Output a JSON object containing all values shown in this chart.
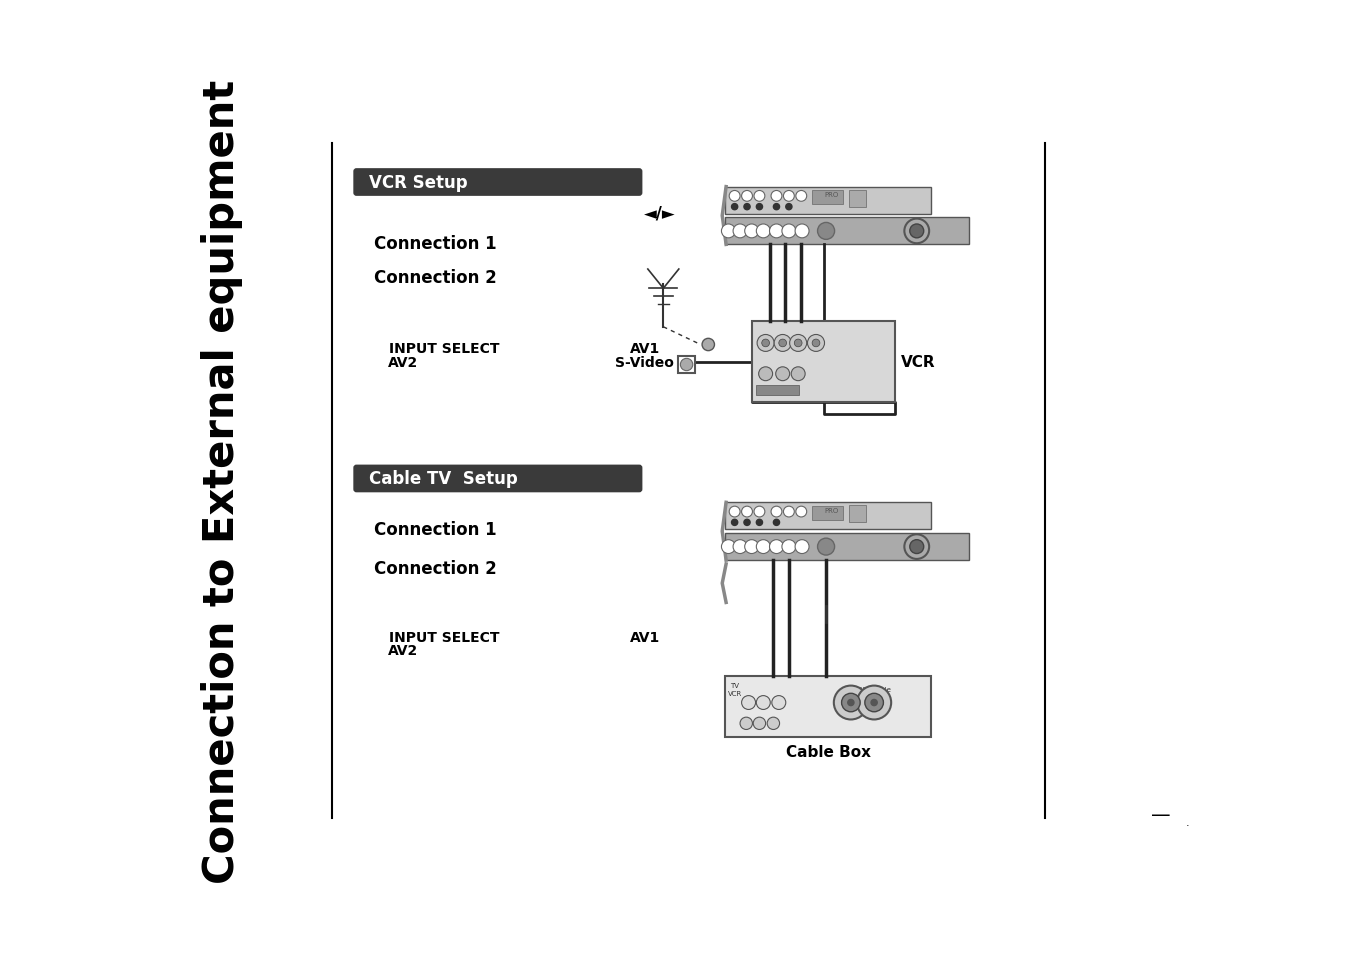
{
  "bg_color": "#ffffff",
  "sidebar_title": "Connection to External equipment",
  "vcr_header": "VCR Setup",
  "cable_header": "Cable TV  Setup",
  "vcr_conn1": "Connection 1",
  "vcr_conn2": "Connection 2",
  "cable_conn1": "Connection 1",
  "cable_conn2": "Connection 2",
  "vcr_input_select": "INPUT SELECT",
  "vcr_av2": "AV2",
  "vcr_av1": "AV1",
  "vcr_svideo": "S-Video",
  "cable_input_select": "INPUT SELECT",
  "cable_av2": "AV2",
  "cable_av1": "AV1",
  "vcr_label": "VCR",
  "cable_box_label": "Cable Box",
  "header_bg": "#3a3a3a",
  "header_text_color": "#ffffff",
  "body_text_color": "#000000",
  "arrow_symbol": "◄/►",
  "page_num_line": "—",
  "page_num_dot": "."
}
